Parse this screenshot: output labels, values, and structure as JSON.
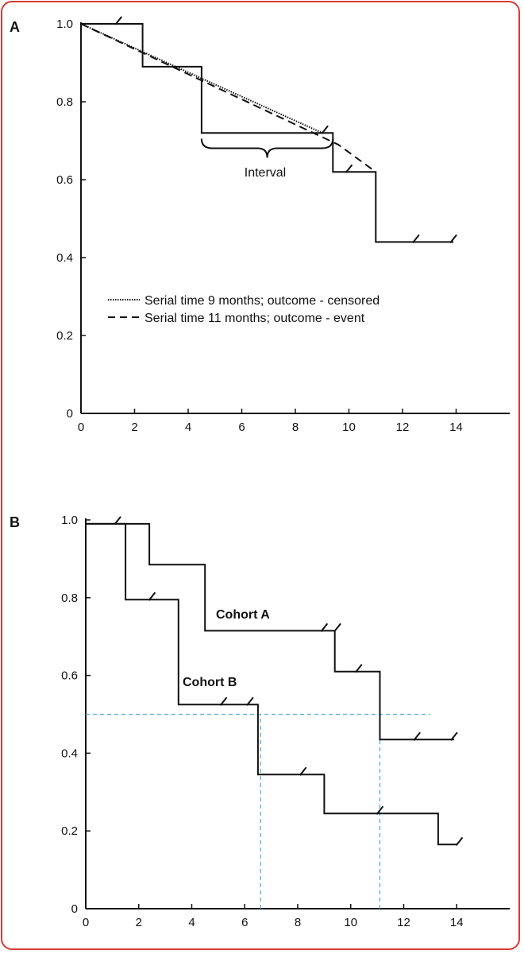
{
  "chart_data": [
    {
      "panel": "A",
      "type": "line",
      "xlim": [
        0,
        16
      ],
      "ylim": [
        0,
        1.0
      ],
      "x_ticks": [
        "0",
        "2",
        "4",
        "6",
        "8",
        "10",
        "12",
        "14"
      ],
      "y_ticks": [
        "0",
        "0.2",
        "0.4",
        "0.6",
        "0.8",
        "1.0"
      ],
      "step_curve": {
        "x": [
          0,
          2.3,
          2.3,
          4.5,
          4.5,
          9.4,
          9.4,
          11.0,
          11.0,
          13.9
        ],
        "y": [
          1.0,
          1.0,
          0.89,
          0.89,
          0.72,
          0.72,
          0.62,
          0.62,
          0.44,
          0.44
        ]
      },
      "censor_marks": [
        {
          "x": 1.4,
          "y": 1.0
        },
        {
          "x": 9.1,
          "y": 0.72
        },
        {
          "x": 10.0,
          "y": 0.62
        },
        {
          "x": 12.5,
          "y": 0.44
        },
        {
          "x": 13.9,
          "y": 0.44
        }
      ],
      "series": [
        {
          "name": "Serial time 9 months; outcome - censored",
          "style": "dotted",
          "x": [
            0,
            9.0
          ],
          "y": [
            1.0,
            0.72
          ]
        },
        {
          "name": "Serial time 11 months; outcome - event",
          "style": "dashed",
          "x": [
            0,
            9.6,
            11.0
          ],
          "y": [
            1.0,
            0.69,
            0.62
          ]
        }
      ],
      "annotation": {
        "text": "Interval",
        "x_from": 4.5,
        "x_to": 9.4,
        "y": 0.705
      },
      "legend_position": "center-left"
    },
    {
      "panel": "B",
      "type": "line",
      "xlim": [
        0,
        16
      ],
      "ylim": [
        0,
        1.0
      ],
      "x_ticks": [
        "0",
        "2",
        "4",
        "6",
        "8",
        "10",
        "12",
        "14"
      ],
      "y_ticks": [
        "0",
        "0.2",
        "0.4",
        "0.6",
        "0.8",
        "1.0"
      ],
      "series": [
        {
          "name": "Cohort A",
          "x": [
            0,
            2.4,
            2.4,
            4.5,
            4.5,
            9.4,
            9.4,
            11.1,
            11.1,
            13.9
          ],
          "y": [
            0.99,
            0.99,
            0.885,
            0.885,
            0.715,
            0.715,
            0.61,
            0.61,
            0.435,
            0.435
          ],
          "censor_marks": [
            {
              "x": 9.0,
              "y": 0.715
            },
            {
              "x": 9.5,
              "y": 0.715
            },
            {
              "x": 10.3,
              "y": 0.61
            },
            {
              "x": 12.5,
              "y": 0.435
            },
            {
              "x": 13.9,
              "y": 0.435
            }
          ],
          "label_at": {
            "x": 6.6,
            "y": 0.745
          }
        },
        {
          "name": "Cohort B",
          "x": [
            0,
            1.5,
            1.5,
            3.5,
            3.5,
            6.5,
            6.5,
            9.0,
            9.0,
            13.3,
            13.3,
            14.0
          ],
          "y": [
            0.99,
            0.99,
            0.795,
            0.795,
            0.525,
            0.525,
            0.345,
            0.345,
            0.245,
            0.245,
            0.165,
            0.165
          ],
          "censor_marks": [
            {
              "x": 1.2,
              "y": 0.99
            },
            {
              "x": 2.5,
              "y": 0.795
            },
            {
              "x": 5.2,
              "y": 0.525
            },
            {
              "x": 6.2,
              "y": 0.525
            },
            {
              "x": 8.2,
              "y": 0.345
            },
            {
              "x": 11.1,
              "y": 0.245
            },
            {
              "x": 14.1,
              "y": 0.165
            }
          ],
          "label_at": {
            "x": 4.8,
            "y": 0.59
          }
        }
      ],
      "reference_lines": {
        "color": "#5aaee0",
        "horizontal": {
          "y": 0.5,
          "x_from": 0,
          "x_to": 13.0
        },
        "vertical": [
          {
            "x": 6.6,
            "y_from": 0,
            "y_to": 0.5
          },
          {
            "x": 11.1,
            "y_from": 0,
            "y_to": 0.5
          }
        ]
      }
    }
  ],
  "colors": {
    "frame": "#d93a34",
    "ink": "#111111",
    "reference": "#5aaee0"
  }
}
